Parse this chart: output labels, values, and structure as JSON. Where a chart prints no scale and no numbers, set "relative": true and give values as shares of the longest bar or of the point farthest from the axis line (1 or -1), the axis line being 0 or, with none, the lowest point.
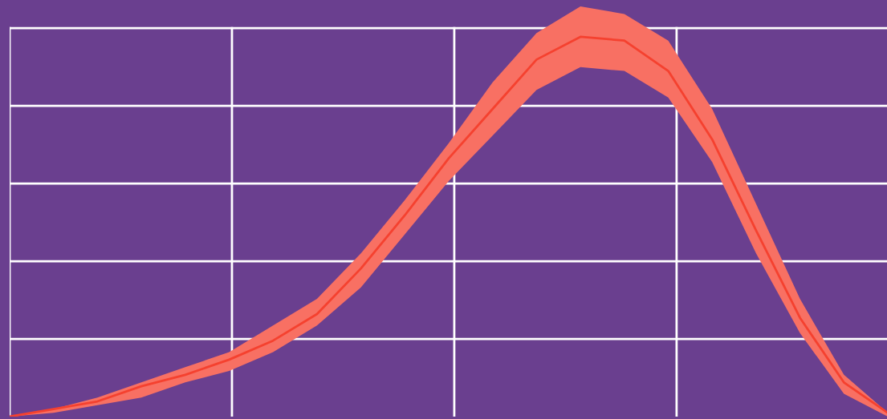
{
  "chart_data": {
    "type": "line",
    "relative": true,
    "categories": [
      null,
      null,
      null,
      null,
      null,
      null,
      null,
      null,
      null,
      null,
      null,
      null,
      null,
      null,
      null,
      null,
      null,
      null,
      null,
      null,
      null
    ],
    "grid": true,
    "series": [
      {
        "color": "#f5412f",
        "values": [
          0,
          0.02,
          0.04,
          0.08,
          0.11,
          0.15,
          0.2,
          0.27,
          0.39,
          0.53,
          0.68,
          0.81,
          0.94,
          1.0,
          0.99,
          0.91,
          0.73,
          0.49,
          0.26,
          0.09,
          0.01
        ],
        "lower": [
          0,
          0.01,
          0.03,
          0.05,
          0.09,
          0.12,
          0.17,
          0.24,
          0.34,
          0.48,
          0.62,
          0.74,
          0.86,
          0.92,
          0.91,
          0.84,
          0.67,
          0.43,
          0.22,
          0.06,
          0
        ],
        "upper": [
          0,
          0.02,
          0.05,
          0.09,
          0.13,
          0.17,
          0.24,
          0.31,
          0.43,
          0.57,
          0.72,
          0.88,
          1.01,
          1.08,
          1.06,
          0.99,
          0.81,
          0.56,
          0.31,
          0.11,
          0.01
        ]
      }
    ]
  }
}
